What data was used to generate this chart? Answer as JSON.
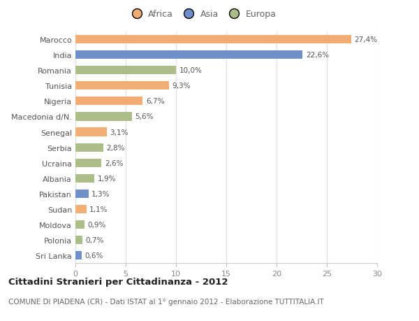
{
  "countries": [
    "Marocco",
    "India",
    "Romania",
    "Tunisia",
    "Nigeria",
    "Macedonia d/N.",
    "Senegal",
    "Serbia",
    "Ucraina",
    "Albania",
    "Pakistan",
    "Sudan",
    "Moldova",
    "Polonia",
    "Sri Lanka"
  ],
  "values": [
    27.4,
    22.6,
    10.0,
    9.3,
    6.7,
    5.6,
    3.1,
    2.8,
    2.6,
    1.9,
    1.3,
    1.1,
    0.9,
    0.7,
    0.6
  ],
  "labels": [
    "27,4%",
    "22,6%",
    "10,0%",
    "9,3%",
    "6,7%",
    "5,6%",
    "3,1%",
    "2,8%",
    "2,6%",
    "1,9%",
    "1,3%",
    "1,1%",
    "0,9%",
    "0,7%",
    "0,6%"
  ],
  "continents": [
    "Africa",
    "Asia",
    "Europa",
    "Africa",
    "Africa",
    "Europa",
    "Africa",
    "Europa",
    "Europa",
    "Europa",
    "Asia",
    "Africa",
    "Europa",
    "Europa",
    "Asia"
  ],
  "colors": {
    "Africa": "#F2AE72",
    "Asia": "#6E8FC9",
    "Europa": "#ABBE88"
  },
  "xlim": [
    0,
    30
  ],
  "xticks": [
    0,
    5,
    10,
    15,
    20,
    25,
    30
  ],
  "bg_color": "#ffffff",
  "grid_color": "#e0e0e0",
  "title": "Cittadini Stranieri per Cittadinanza - 2012",
  "subtitle": "COMUNE DI PIADENA (CR) - Dati ISTAT al 1° gennaio 2012 - Elaborazione TUTTITALIA.IT",
  "bar_height": 0.55,
  "label_fontsize": 7.5,
  "ytick_fontsize": 8,
  "xtick_fontsize": 8
}
